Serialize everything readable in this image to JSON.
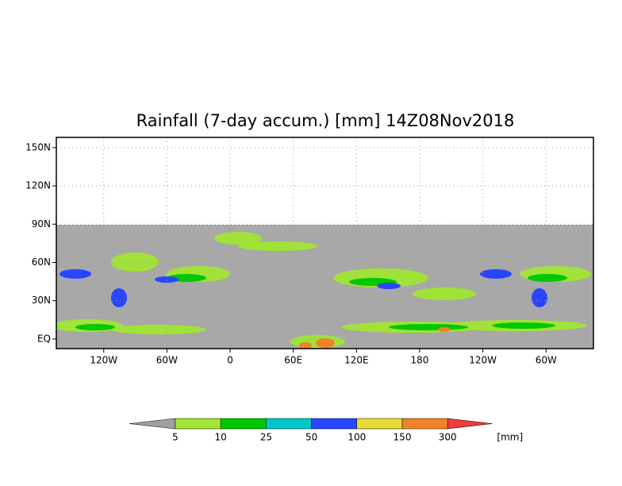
{
  "map": {
    "title": "Rainfall (7-day accum.) [mm] 14Z08Nov2018",
    "xlim": [
      -165,
      345
    ],
    "ylim": [
      -7.5,
      158
    ],
    "xticks": [
      {
        "value": -120,
        "label": "120W"
      },
      {
        "value": -60,
        "label": "60W"
      },
      0,
      {
        "value": 60,
        "label": "60E"
      },
      {
        "value": 120,
        "label": "120E"
      },
      180,
      {
        "value": 240,
        "label": "120W"
      },
      {
        "value": 300,
        "label": "60W"
      }
    ],
    "yticks": [
      {
        "value": 0,
        "label": "EQ"
      },
      {
        "value": 30,
        "label": "30N"
      },
      {
        "value": 60,
        "label": "60N"
      },
      {
        "value": 90,
        "label": "90N"
      },
      {
        "value": 120,
        "label": "120N"
      },
      {
        "value": 150,
        "label": "150N"
      }
    ],
    "grid": true,
    "colorbar": {
      "levels": [
        5,
        10,
        25,
        50,
        100,
        150,
        300
      ],
      "colors": [
        "#a0a0a0",
        "#a0e632",
        "#00c800",
        "#00c8c8",
        "#2846ff",
        "#e6dc32",
        "#f08228",
        "#f03c3c"
      ],
      "unit": "[mm]"
    }
  }
}
